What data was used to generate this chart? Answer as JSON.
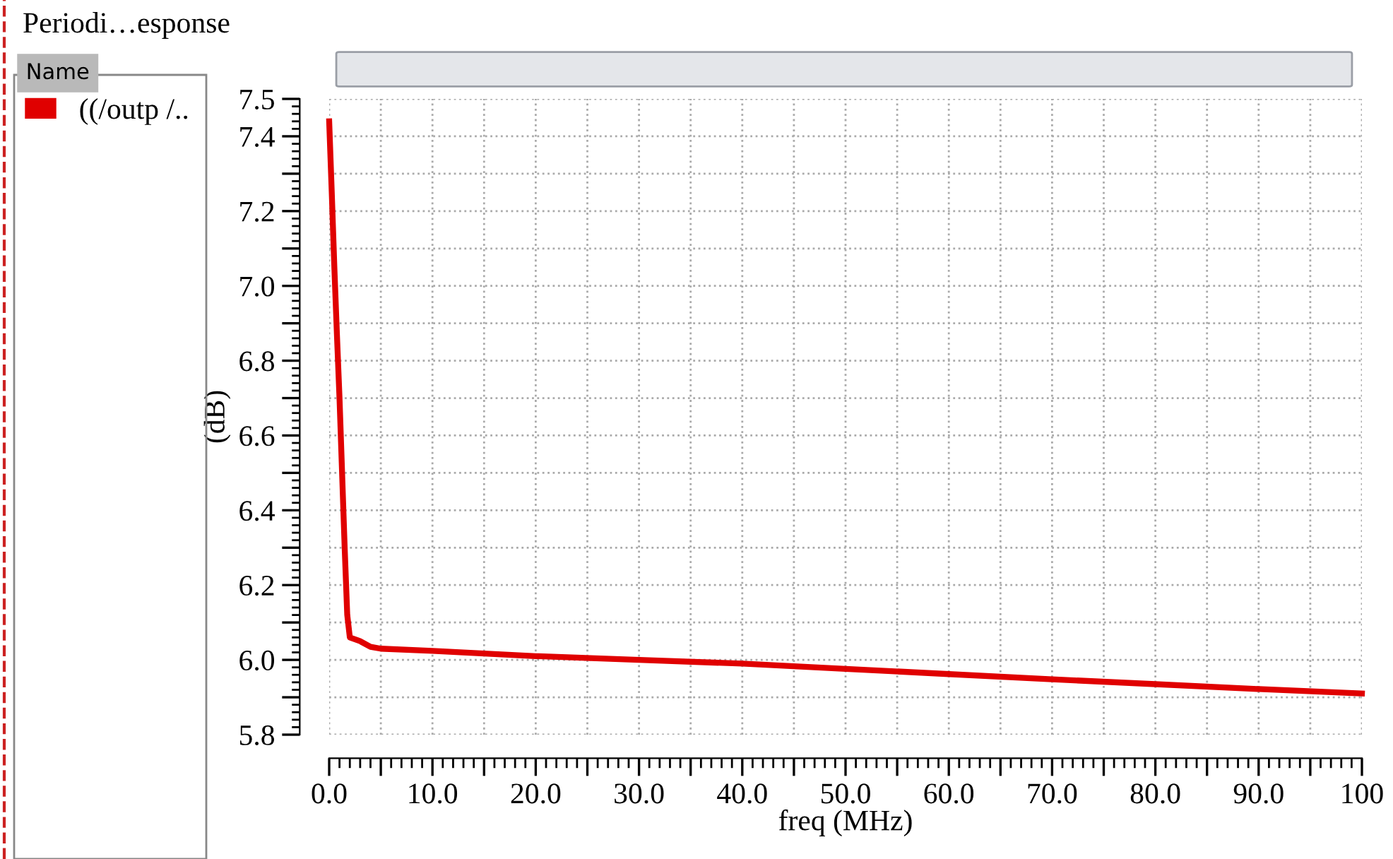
{
  "chart_data": {
    "type": "line",
    "title": "Periodi…esponse",
    "xlabel": "freq (MHz)",
    "ylabel": "(dB)",
    "legend_title": "Name",
    "legend": "left",
    "grid": true,
    "line_style": "solid",
    "marker": "none",
    "x": [
      0,
      0.25,
      0.5,
      0.75,
      1.0,
      1.25,
      1.5,
      1.75,
      2.0,
      3,
      4,
      5,
      10,
      20,
      30,
      40,
      50,
      60,
      70,
      80,
      90,
      100
    ],
    "series": [
      {
        "name": "((/outp /..",
        "color": "#e00000",
        "values": [
          7.44,
          7.25,
          7.05,
          6.87,
          6.7,
          6.5,
          6.3,
          6.12,
          6.06,
          6.05,
          6.035,
          6.03,
          6.024,
          6.01,
          6.0,
          5.99,
          5.976,
          5.962,
          5.948,
          5.935,
          5.922,
          5.91
        ]
      }
    ],
    "xlim": [
      0,
      100
    ],
    "ylim": [
      5.8,
      7.5
    ],
    "xticks": [
      {
        "value": 0,
        "label": "0.0"
      },
      {
        "value": 5,
        "label": null
      },
      {
        "value": 10,
        "label": "10.0"
      },
      {
        "value": 15,
        "label": null
      },
      {
        "value": 20,
        "label": "20.0"
      },
      {
        "value": 25,
        "label": null
      },
      {
        "value": 30,
        "label": "30.0"
      },
      {
        "value": 35,
        "label": null
      },
      {
        "value": 40,
        "label": "40.0"
      },
      {
        "value": 45,
        "label": null
      },
      {
        "value": 50,
        "label": "50.0"
      },
      {
        "value": 55,
        "label": null
      },
      {
        "value": 60,
        "label": "60.0"
      },
      {
        "value": 65,
        "label": null
      },
      {
        "value": 70,
        "label": "70.0"
      },
      {
        "value": 75,
        "label": null
      },
      {
        "value": 80,
        "label": "80.0"
      },
      {
        "value": 85,
        "label": null
      },
      {
        "value": 90,
        "label": "90.0"
      },
      {
        "value": 95,
        "label": null
      },
      100
    ],
    "yticks": [
      5.8,
      {
        "value": 5.9,
        "label": null
      },
      {
        "value": 6,
        "label": "6.0"
      },
      {
        "value": 6.1,
        "label": null
      },
      6.2,
      {
        "value": 6.3,
        "label": null
      },
      6.4,
      {
        "value": 6.5,
        "label": null
      },
      6.6,
      {
        "value": 6.7,
        "label": null
      },
      6.8,
      {
        "value": 6.9,
        "label": null
      },
      {
        "value": 7,
        "label": "7.0"
      },
      {
        "value": 7.1,
        "label": null
      },
      7.2,
      {
        "value": 7.3,
        "label": null
      },
      7.4,
      7.5
    ]
  }
}
